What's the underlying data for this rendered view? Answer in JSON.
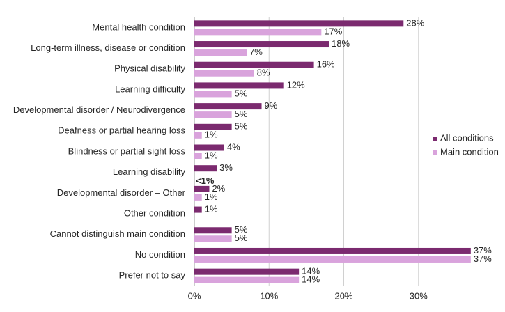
{
  "chart_data": {
    "type": "hbar",
    "categories": [
      "Mental health condition",
      "Long-term illness, disease or condition",
      "Physical disability",
      "Learning difficulty",
      "Developmental disorder / Neurodivergence",
      "Deafness or partial hearing loss",
      "Blindness or partial sight loss",
      "Learning disability",
      "Developmental disorder – Other",
      "Other condition",
      "Cannot distinguish main condition",
      "No condition",
      "Prefer not to say"
    ],
    "series": [
      {
        "name": "All conditions",
        "color": "#7b2a6f",
        "values": [
          28,
          18,
          16,
          12,
          9,
          5,
          4,
          3,
          2,
          1,
          5,
          37,
          14
        ],
        "value_labels": [
          "28%",
          "18%",
          "16%",
          "12%",
          "9%",
          "5%",
          "4%",
          "3%",
          "2%",
          "1%",
          "5%",
          "37%",
          "14%"
        ]
      },
      {
        "name": "Main condition",
        "color": "#d9a3dc",
        "values": [
          17,
          7,
          8,
          5,
          5,
          1,
          1,
          null,
          1,
          null,
          5,
          37,
          14
        ],
        "value_labels": [
          "17%",
          "7%",
          "8%",
          "5%",
          "5%",
          "1%",
          "1%",
          null,
          "1%",
          null,
          "5%",
          "37%",
          "14%"
        ]
      }
    ],
    "annotations": [
      {
        "text": "<1%",
        "category": 7
      }
    ],
    "xlim": [
      0,
      40
    ],
    "xticks": [
      {
        "value": 0,
        "label": "0%"
      },
      {
        "value": 10,
        "label": "10%"
      },
      {
        "value": 20,
        "label": "20%"
      },
      {
        "value": 30,
        "label": "30%"
      }
    ],
    "grid": true,
    "legend": "right"
  }
}
